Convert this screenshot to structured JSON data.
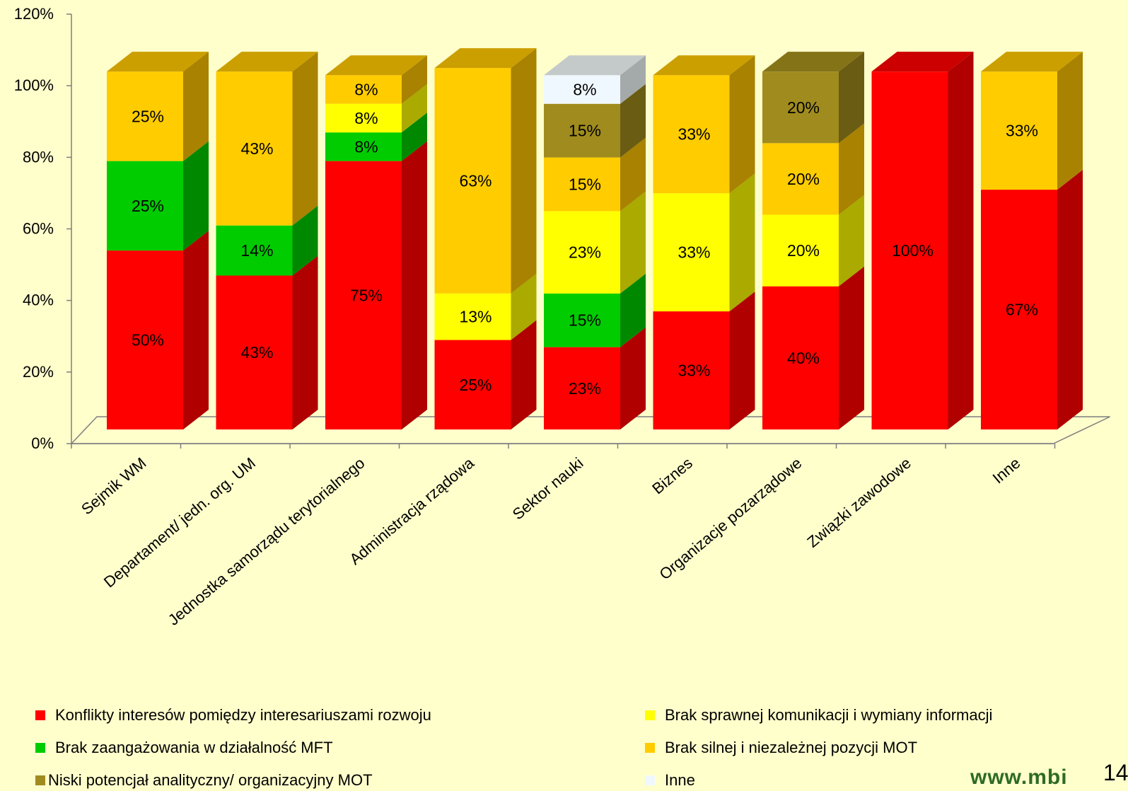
{
  "chart_data": {
    "type": "bar",
    "stacked": true,
    "three_d": true,
    "categories": [
      "Sejmik WM",
      "Departament/ jedn. org. UM",
      "Jednostka samorządu terytorialnego",
      "Administracja rządowa",
      "Sektor nauki",
      "Biznes",
      "Organizacje pozarządowe",
      "Związki zawodowe",
      "Inne"
    ],
    "series": [
      {
        "name": "Konflikty interesów pomiędzy interesariuszami rozwoju",
        "color": "#FF0000",
        "side": "#B00000",
        "top": "#CC0000",
        "values": [
          50,
          43,
          75,
          25,
          23,
          33,
          40,
          100,
          67
        ]
      },
      {
        "name": "Brak zaangażowania w działalność MFT",
        "color": "#00CC00",
        "side": "#008800",
        "top": "#00A000",
        "values": [
          25,
          14,
          8,
          0,
          15,
          0,
          0,
          0,
          0
        ]
      },
      {
        "name": "Brak sprawnej komunikacji i wymiany informacji",
        "color": "#FFFF00",
        "side": "#AAAA00",
        "top": "#D4D400",
        "values": [
          0,
          0,
          8,
          13,
          23,
          33,
          20,
          0,
          0
        ]
      },
      {
        "name": "Brak silnej i niezależnej pozycji MOT",
        "color": "#FFCC00",
        "side": "#A88200",
        "top": "#CC9F00",
        "values": [
          25,
          43,
          8,
          63,
          15,
          33,
          20,
          0,
          33
        ]
      },
      {
        "name": "Niski potencjał analityczny/ organizacyjny MOT",
        "color": "#A08C1E",
        "side": "#6A5C12",
        "top": "#857318",
        "values": [
          0,
          0,
          0,
          0,
          15,
          0,
          20,
          0,
          0
        ]
      },
      {
        "name": "Inne",
        "color": "#F0F8FF",
        "side": "#A4AAAA",
        "top": "#C4CACA",
        "values": [
          0,
          0,
          0,
          0,
          8,
          0,
          0,
          0,
          0
        ]
      }
    ],
    "data_labels": [
      [
        "50%",
        "25%",
        null,
        "25%",
        null,
        null
      ],
      [
        "43%",
        "14%",
        null,
        "43%",
        null,
        null
      ],
      [
        "75%",
        "8%",
        "8%",
        "8%",
        null,
        null
      ],
      [
        "25%",
        null,
        "13%",
        "63%",
        null,
        null
      ],
      [
        "23%",
        "15%",
        "23%",
        "15%",
        "15%",
        "8%"
      ],
      [
        "33%",
        null,
        "33%",
        "33%",
        null,
        null
      ],
      [
        "40%",
        null,
        "20%",
        "20%",
        "20%",
        null
      ],
      [
        "100%",
        null,
        null,
        null,
        null,
        null
      ],
      [
        "67%",
        null,
        null,
        "33%",
        null,
        null
      ]
    ],
    "y_ticks": [
      "0%",
      "20%",
      "40%",
      "60%",
      "80%",
      "100%",
      "120%"
    ],
    "ylim": [
      0,
      120
    ],
    "grid": false,
    "legend_position": "bottom"
  },
  "legend": {
    "items": [
      {
        "label": "Konflikty interesów pomiędzy interesariuszami rozwoju",
        "color": "#FF0000"
      },
      {
        "label": "Brak sprawnej komunikacji i wymiany informacji",
        "color": "#FFFF00"
      },
      {
        "label": "Brak zaangażowania w działalność MFT",
        "color": "#00CC00"
      },
      {
        "label": "Brak silnej i niezależnej pozycji MOT",
        "color": "#FFCC00"
      },
      {
        "label": "Niski potencjał analityczny/ organizacyjny MOT",
        "color": "#A08C1E"
      },
      {
        "label": "Inne",
        "color": "#F0F8FF"
      }
    ]
  },
  "footer": {
    "logo_text": "www.mbi",
    "page_number": "14"
  }
}
